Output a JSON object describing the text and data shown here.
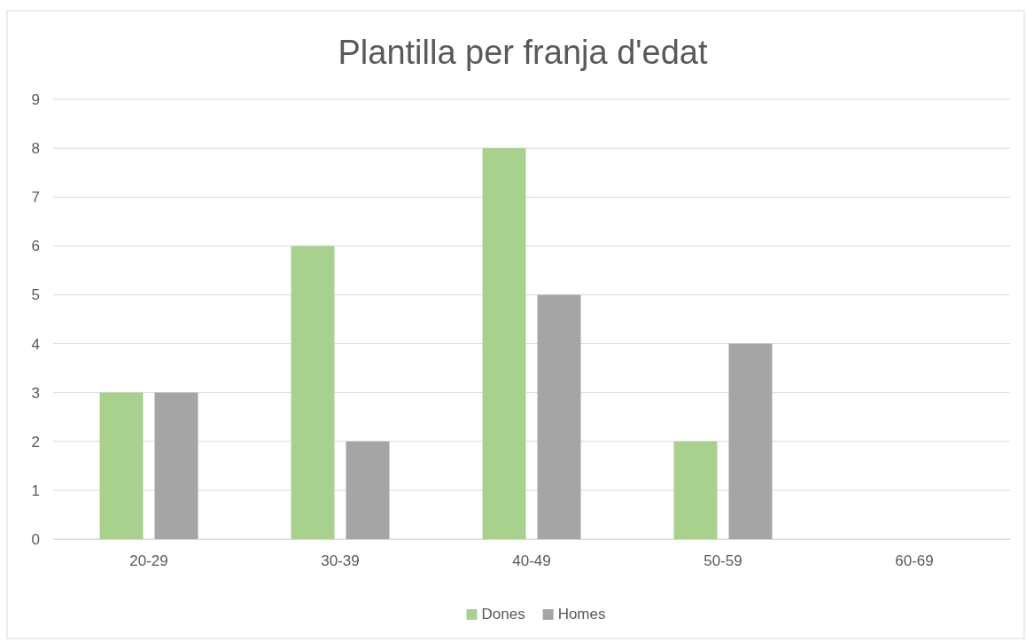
{
  "chart_data": {
    "type": "bar",
    "title": "Plantilla per franja d'edat",
    "categories": [
      "20-29",
      "30-39",
      "40-49",
      "50-59",
      "60-69"
    ],
    "series": [
      {
        "name": "Dones",
        "color": "#a9d18e",
        "values": [
          3,
          6,
          8,
          2,
          0
        ]
      },
      {
        "name": "Homes",
        "color": "#a5a5a5",
        "values": [
          3,
          2,
          5,
          4,
          0
        ]
      }
    ],
    "ylim": [
      0,
      9
    ],
    "yticks": [
      0,
      1,
      2,
      3,
      4,
      5,
      6,
      7,
      8,
      9
    ],
    "grid": "y",
    "legend": "bottom"
  }
}
